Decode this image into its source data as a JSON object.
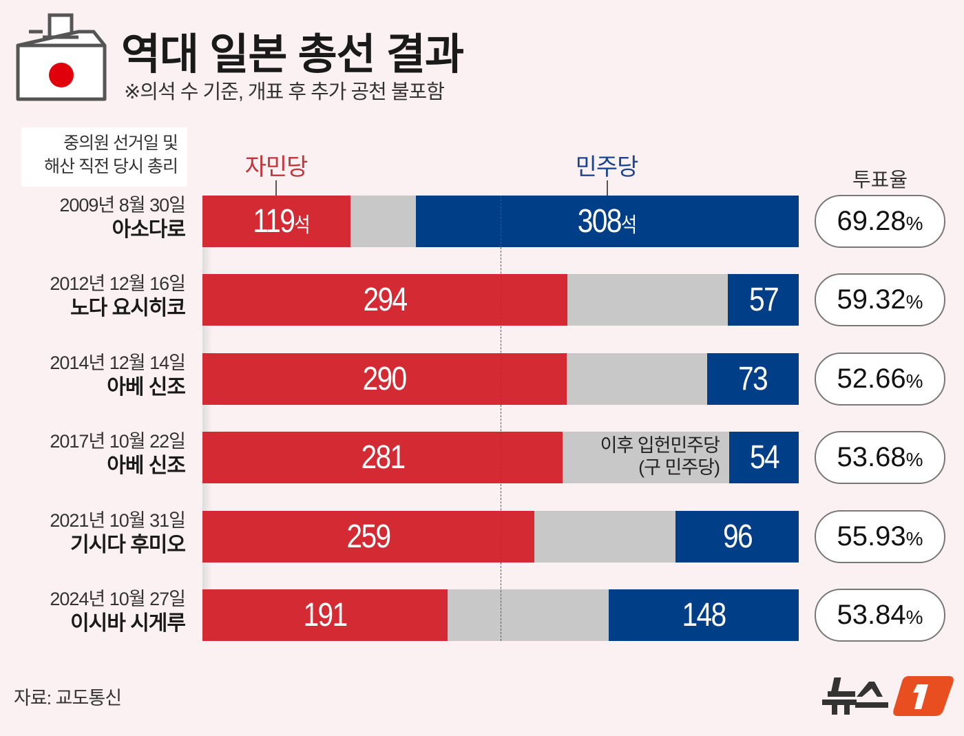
{
  "title": "역대 일본 총선 결과",
  "subtitle": "※의석 수 기준, 개표 후 추가 공천 불포함",
  "row_header": [
    "중의원 선거일 및",
    "해산 직전 당시 총리"
  ],
  "turnout_header": "투표율",
  "source": "자료: 교도통신",
  "logo": "뉴스1",
  "colors": {
    "ldp": "#d32a33",
    "dpj": "#003f88",
    "others": "#c8c8c8",
    "background": "#fcf1f2",
    "logo": "#e84e1f"
  },
  "chart_data": {
    "type": "bar",
    "stacked": true,
    "orientation": "horizontal",
    "seat_unit": "석",
    "majority_line": "dashed at half of total seats",
    "categories": [
      {
        "date": "2009년 8월 30일",
        "pm": "아소다로"
      },
      {
        "date": "2012년 12월 16일",
        "pm": "노다 요시히코"
      },
      {
        "date": "2014년 12월 14일",
        "pm": "아베 신조"
      },
      {
        "date": "2017년 10월 22일",
        "pm": "아베 신조"
      },
      {
        "date": "2021년 10월 31일",
        "pm": "기시다 후미오"
      },
      {
        "date": "2024년 10월 27일",
        "pm": "이시바 시게루"
      }
    ],
    "total_seats": [
      480,
      480,
      475,
      465,
      465,
      465
    ],
    "series": [
      {
        "name": "자민당",
        "values": [
          119,
          294,
          290,
          281,
          259,
          191
        ]
      },
      {
        "name": "민주당",
        "values": [
          308,
          57,
          73,
          54,
          96,
          148
        ]
      }
    ],
    "turnout": [
      "69.28",
      "59.32",
      "52.66",
      "53.68",
      "55.93",
      "53.84"
    ],
    "turnout_unit": "%",
    "annotation": {
      "row": 3,
      "lines": [
        "이후 입헌민주당",
        "(구 민주당)"
      ]
    }
  }
}
